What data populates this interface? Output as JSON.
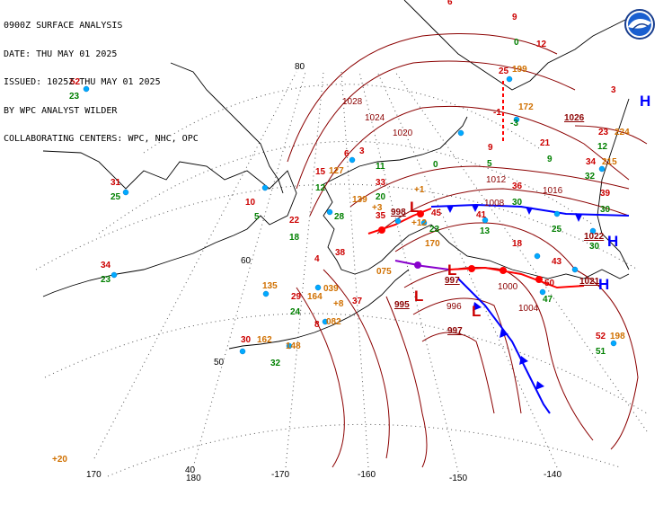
{
  "header": {
    "line1": "0900Z SURFACE ANALYSIS",
    "line2": "DATE: THU MAY 01 2025",
    "line3": "ISSUED: 1025Z THU MAY 01 2025",
    "line4": "BY WPC ANALYST WILDER",
    "line5": "COLLABORATING CENTERS: WPC, NHC, OPC"
  },
  "logo": {
    "name": "noaa-logo"
  },
  "grid": {
    "lat_labels": [
      "80",
      "60",
      "50",
      "40"
    ],
    "lon_labels": [
      "170",
      "180",
      "-170",
      "-160",
      "-150",
      "-140"
    ]
  },
  "isobars": [
    "1028",
    "1024",
    "1020",
    "1012",
    "1016",
    "1008",
    "1004",
    "1000",
    "996"
  ],
  "centers": {
    "highs": [
      {
        "label": "H",
        "pressure": "1026"
      },
      {
        "label": "H",
        "pressure": "1022"
      },
      {
        "label": "H",
        "pressure": "1021"
      }
    ],
    "lows": [
      {
        "label": "L",
        "pressure": "998"
      },
      {
        "label": "L",
        "pressure": "997"
      },
      {
        "label": "L",
        "pressure": "995"
      },
      {
        "label": "L",
        "pressure": "997"
      }
    ]
  },
  "stations_red": [
    "52",
    "31",
    "34",
    "10",
    "22",
    "15",
    "6",
    "3",
    "33",
    "35",
    "45",
    "41",
    "9",
    "36",
    "21",
    "34",
    "39",
    "38",
    "29",
    "30",
    "37",
    "43",
    "50",
    "52",
    "9",
    "12",
    "6",
    "18",
    "25",
    "8",
    "4",
    "-1",
    "3",
    "23"
  ],
  "stations_green": [
    "23",
    "25",
    "23",
    "5",
    "18",
    "12",
    "28",
    "20",
    "0",
    "5",
    "30",
    "25",
    "30",
    "24",
    "32",
    "12",
    "32",
    "30",
    "47",
    "51",
    "11",
    "23",
    "-3",
    "0",
    "9",
    "13"
  ],
  "stations_orange": [
    "127",
    "139",
    "135",
    "164",
    "039",
    "162",
    "148",
    "082",
    "075",
    "170",
    "198",
    "224",
    "215",
    "172",
    "199",
    "+20",
    "+3",
    "+12",
    "+8",
    "+1"
  ],
  "colors": {
    "isobar": "#8b0000",
    "coast": "#000000",
    "grid": "#606060",
    "cold_front": "#0000ff",
    "warm_front": "#ff0000",
    "occluded_front": "#8800cc",
    "high": "#0000ff",
    "low": "#cc0000",
    "station_red": "#cc0000",
    "station_green": "#008000",
    "station_orange": "#d07000",
    "station_circle": "#00aaff"
  }
}
